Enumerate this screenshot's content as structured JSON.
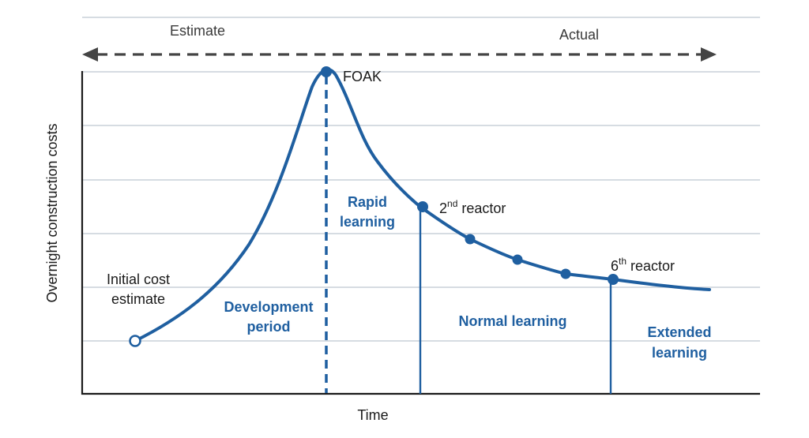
{
  "header": {
    "estimate_label": "Estimate",
    "actual_label": "Actual"
  },
  "axes": {
    "ylabel": "Overnight construction costs",
    "xlabel": "Time"
  },
  "points": {
    "initial_line1": "Initial cost",
    "initial_line2": "estimate",
    "foak": "FOAK",
    "second_num": "2",
    "second_sup": "nd",
    "second_word": " reactor",
    "sixth_num": "6",
    "sixth_sup": "th",
    "sixth_word": " reactor"
  },
  "phases": {
    "development_line1": "Development",
    "development_line2": "period",
    "rapid_line1": "Rapid",
    "rapid_line2": "learning",
    "normal": "Normal learning",
    "extended_line1": "Extended",
    "extended_line2": "learning"
  },
  "colors": {
    "curve": "#1f5fa0",
    "axis": "#1a1a1a",
    "grid": "#c9d0d8"
  }
}
